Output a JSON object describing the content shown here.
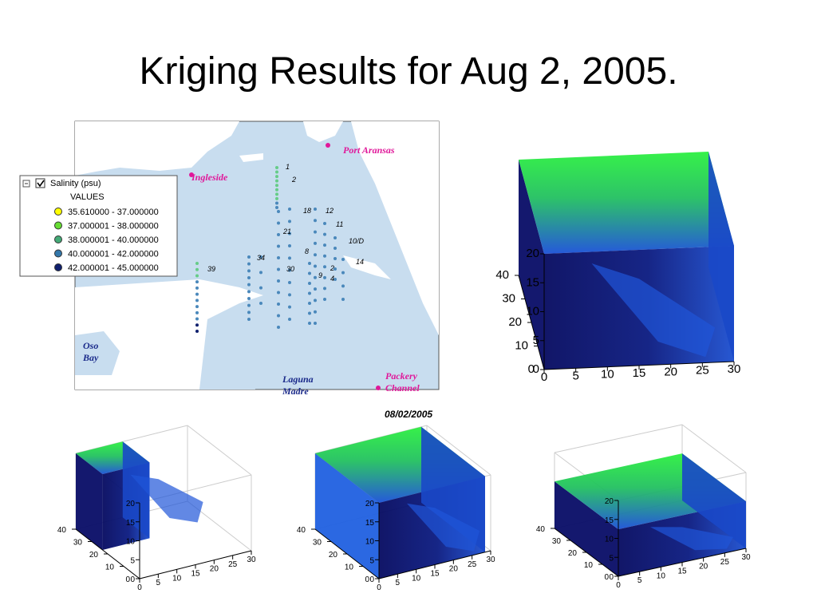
{
  "title": "Kriging Results for Aug 2, 2005.",
  "map": {
    "places": [
      "Port Aransas",
      "Ingleside",
      "Oso Bay",
      "Laguna Madre",
      "Packery Channel"
    ],
    "stations": [
      "1",
      "2",
      "18",
      "12",
      "11",
      "21",
      "10/D",
      "8",
      "34",
      "14",
      "39",
      "30",
      "2",
      "9",
      "4"
    ],
    "date": "08/02/2005"
  },
  "legend": {
    "layer": "Salinity (psu)",
    "heading": "VALUES",
    "classes": [
      {
        "label": "35.610000 - 37.000000",
        "color": "#ffff00"
      },
      {
        "label": "37.000001 - 38.000000",
        "color": "#66dd33"
      },
      {
        "label": "38.000001 - 40.000000",
        "color": "#44aa77"
      },
      {
        "label": "40.000001 - 42.000000",
        "color": "#3377aa"
      },
      {
        "label": "42.000001 - 45.000000",
        "color": "#10206e"
      }
    ]
  },
  "views": [
    {
      "xlim": [
        0,
        30
      ],
      "ylim": [
        0,
        40
      ],
      "zlim": [
        0,
        20
      ],
      "xticks": [
        0,
        5,
        10,
        15,
        20,
        25,
        30
      ],
      "yticks": [
        0,
        10,
        20,
        30,
        40
      ],
      "zticks": [
        0,
        5,
        10,
        15,
        20
      ]
    },
    {
      "xlim": [
        0,
        30
      ],
      "ylim": [
        0,
        40
      ],
      "zlim": [
        0,
        20
      ],
      "xticks": [
        0,
        5,
        10,
        15,
        20,
        25,
        30
      ],
      "yticks": [
        0,
        10,
        20,
        30,
        40
      ],
      "zticks": [
        0,
        5,
        10,
        15,
        20
      ]
    },
    {
      "xlim": [
        0,
        30
      ],
      "ylim": [
        0,
        40
      ],
      "zlim": [
        0,
        20
      ],
      "xticks": [
        0,
        5,
        10,
        15,
        20,
        25,
        30
      ],
      "yticks": [
        0,
        10,
        20,
        30,
        40
      ],
      "zticks": [
        0,
        5,
        10,
        15,
        20
      ]
    },
    {
      "xlim": [
        0,
        30
      ],
      "ylim": [
        0,
        40
      ],
      "zlim": [
        0,
        20
      ],
      "xticks": [
        0,
        5,
        10,
        15,
        20,
        25,
        30
      ],
      "yticks": [
        0,
        10,
        20,
        30,
        40
      ],
      "zticks": [
        0,
        5,
        10,
        15,
        20
      ]
    }
  ]
}
